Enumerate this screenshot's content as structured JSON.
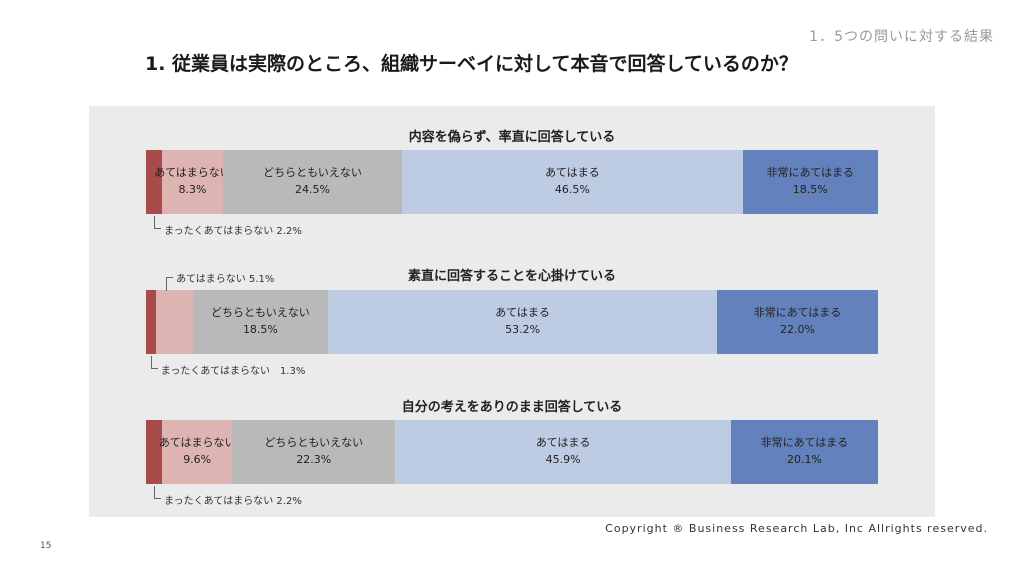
{
  "header": {
    "section_label": "1．5つの問いに対する結果",
    "title": "1. 従業員は実際のところ、組織サーベイに対して本音で回答しているのか？"
  },
  "chart_data": {
    "type": "bar",
    "stacked": true,
    "orientation": "horizontal",
    "categories": [
      "まったくあてはまらない",
      "あてはまらない",
      "どちらともいえない",
      "あてはまる",
      "非常にあてはまる"
    ],
    "colors": [
      "#a94b4b",
      "#deb4b2",
      "#b9b9b9",
      "#bdcbe3",
      "#6381bd"
    ],
    "value_suffix": "%",
    "charts": [
      {
        "title": "内容を偽らず、率直に回答している",
        "values": [
          2.2,
          8.3,
          24.5,
          46.5,
          18.5
        ],
        "callout_label": "まったくあてはまらない 2.2%"
      },
      {
        "title": "素直に回答することを心掛けている",
        "values": [
          1.3,
          5.1,
          18.5,
          53.2,
          22.0
        ],
        "callout_label": "まったくあてはまらない　1.3%",
        "callout_label_top": "あてはまらない 5.1%"
      },
      {
        "title": "自分の考えをありのまま回答している",
        "values": [
          2.2,
          9.6,
          22.3,
          45.9,
          20.1
        ],
        "callout_label": "まったくあてはまらない 2.2%"
      }
    ]
  },
  "footer": {
    "copyright": "Copyright ® Business Research Lab, Inc Allrights reserved.",
    "page_number": "15"
  }
}
